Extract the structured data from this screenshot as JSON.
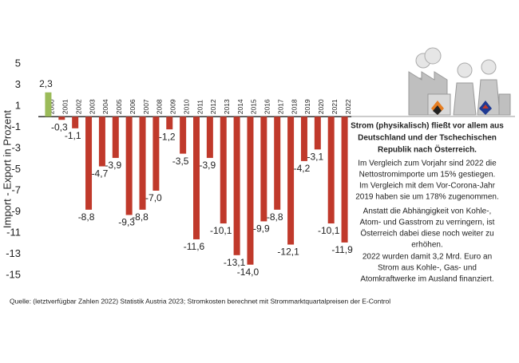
{
  "chart_data": {
    "type": "bar",
    "y_label": "Import - Export in Prozent",
    "categories": [
      "2000",
      "2001",
      "2002",
      "2003",
      "2004",
      "2005",
      "2006",
      "2007",
      "2008",
      "2009",
      "2010",
      "2011",
      "2012",
      "2013",
      "2014",
      "2015",
      "2016",
      "2017",
      "2018",
      "2019",
      "2020",
      "2021",
      "2022"
    ],
    "values": [
      2.3,
      -0.3,
      -1.1,
      -8.8,
      -4.7,
      -3.9,
      -9.3,
      -8.8,
      -7.0,
      -1.2,
      -3.5,
      -11.6,
      -3.9,
      -10.1,
      -13.1,
      -14.0,
      -9.9,
      -8.8,
      -12.1,
      -4.2,
      -3.1,
      -10.1,
      -11.9
    ],
    "value_labels": [
      "2,3",
      "-0,3",
      "-1,1",
      "-8,8",
      "-4,7",
      "-3,9",
      "-9,3",
      "-8,8",
      "-7,0",
      "-1,2",
      "-3,5",
      "-11,6",
      "-3,9",
      "-10,1",
      "-13,1",
      "-14,0",
      "-9,9",
      "-8,8",
      "-12,1",
      "-4,2",
      "-3,1",
      "-10,1",
      "-11,9"
    ],
    "colors": [
      "#9bbb59",
      "#c0392b",
      "#c0392b",
      "#c0392b",
      "#c0392b",
      "#c0392b",
      "#c0392b",
      "#c0392b",
      "#c0392b",
      "#c0392b",
      "#c0392b",
      "#c0392b",
      "#c0392b",
      "#c0392b",
      "#c0392b",
      "#c0392b",
      "#c0392b",
      "#c0392b",
      "#c0392b",
      "#c0392b",
      "#c0392b",
      "#c0392b",
      "#c0392b"
    ],
    "ylim": [
      -15,
      5
    ],
    "yticks": [
      5,
      3,
      1,
      -1,
      -3,
      -5,
      -7,
      -9,
      -11,
      -13,
      -15
    ],
    "grid": false,
    "note": {
      "heading": [
        "Strom (physikalisch) fließt vor allem aus",
        "Deutschland und der Tschechischen",
        "Republik nach Österreich."
      ],
      "lines": [
        "Im Vergleich zum Vorjahr sind 2022 die",
        "Nettostromimporte um 15% gestiegen.",
        "Im Vergleich mit dem Vor-Corona-Jahr",
        "2019 haben sie um 178% zugenommen.",
        "Anstatt die Abhängigkeit von Kohle-,",
        "Atom- und Gasstrom zu verringern, ist",
        "Österreich dabei diese noch weiter zu",
        "erhöhen.",
        "2022 wurden damit 3,2 Mrd. Euro an",
        "Strom aus Kohle-, Gas- und",
        "Atomkraftwerke im Ausland finanziert."
      ]
    },
    "source": "Quelle: (letztverfügbar Zahlen 2022) Statistik Austria 2023; Stromkosten berechnet mit Strommarktquartalpreisen der E-Control"
  }
}
